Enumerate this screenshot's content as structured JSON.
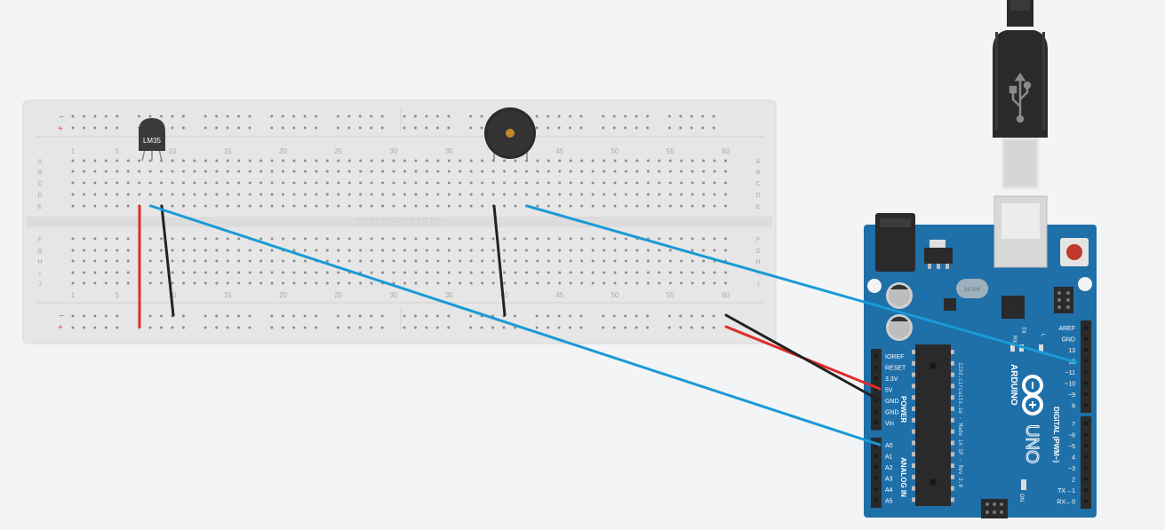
{
  "breadboard": {
    "watermark": "123D.CIRCUITS.IO",
    "column_numbers": [
      "1",
      "5",
      "10",
      "15",
      "20",
      "25",
      "30",
      "35",
      "40",
      "45",
      "50",
      "55",
      "60"
    ],
    "rows_top": [
      "A",
      "B",
      "C",
      "D",
      "E"
    ],
    "rows_bottom": [
      "F",
      "G",
      "H",
      "I",
      "J"
    ],
    "rail_minus": "−",
    "rail_plus": "+"
  },
  "components": {
    "sensor_label": "LM35"
  },
  "arduino": {
    "brand": "ARDUINO",
    "model": "UNO",
    "crystal": "16.000",
    "silk_text": "123d.circuits.io - Made in SF - Rev 3.0",
    "power_header_title": "POWER",
    "analog_header_title": "ANALOG IN",
    "digital_header_title": "DIGITAL (PWM~)",
    "power_pins": [
      "IOREF",
      "RESET",
      "3.3V",
      "5V",
      "GND",
      "GND",
      "Vin"
    ],
    "analog_pins": [
      "A0",
      "A1",
      "A2",
      "A3",
      "A4",
      "A5"
    ],
    "digital_pins_top": [
      "AREF",
      "GND",
      "13",
      "12",
      "~11",
      "~10",
      "~9",
      "8"
    ],
    "digital_pins_bottom": [
      "7",
      "~6",
      "~5",
      "4",
      "~3",
      "2",
      "TX→1",
      "RX←0"
    ],
    "led_labels": [
      "RX",
      "TX",
      "L"
    ],
    "on_label": "ON"
  },
  "colors": {
    "board_blue": "#1f6fa8",
    "wire_blue": "#1a9ad6",
    "wire_red": "#e02b2b",
    "wire_black": "#222222",
    "breadboard": "#e6e6e6"
  }
}
